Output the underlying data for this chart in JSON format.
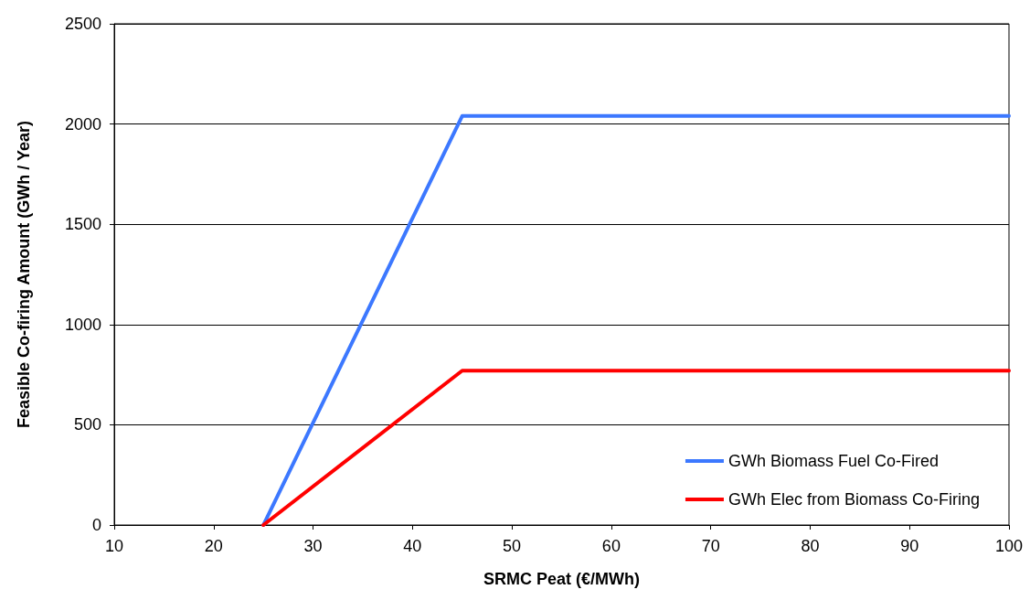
{
  "chart_data": {
    "type": "line",
    "xlabel": "SRMC Peat (€/MWh)",
    "ylabel": "Feasible Co-firing Amount (GWh / Year)",
    "series": [
      {
        "name": "GWh Biomass Fuel Co-Fired",
        "color": "#3c78ff",
        "x": [
          25,
          45,
          100
        ],
        "values": [
          0,
          2040,
          2040
        ]
      },
      {
        "name": "GWh Elec from Biomass Co-Firing",
        "color": "#ff0000",
        "x": [
          25,
          45,
          100
        ],
        "values": [
          0,
          770,
          770
        ]
      }
    ],
    "xlim": [
      10,
      100
    ],
    "xticks": [
      10,
      20,
      30,
      40,
      50,
      60,
      70,
      80,
      90,
      100
    ],
    "ylim": [
      0,
      2500
    ],
    "yticks": [
      0,
      500,
      1000,
      1500,
      2000,
      2500
    ],
    "grid": "y",
    "legend": "bottom right",
    "marker": "none",
    "line_style": "solid"
  }
}
